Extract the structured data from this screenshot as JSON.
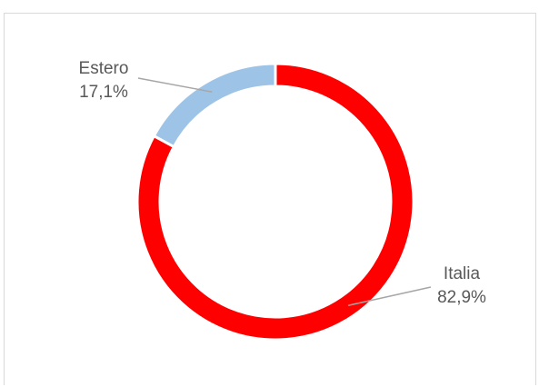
{
  "chart_data": {
    "type": "pie",
    "donut": true,
    "categories": [
      "Italia",
      "Estero"
    ],
    "values": [
      82.9,
      17.1
    ],
    "value_labels": [
      "82,9%",
      "17,1%"
    ],
    "colors": [
      "#ff0000",
      "#9dc3e6"
    ],
    "title": "",
    "legend": "none"
  }
}
